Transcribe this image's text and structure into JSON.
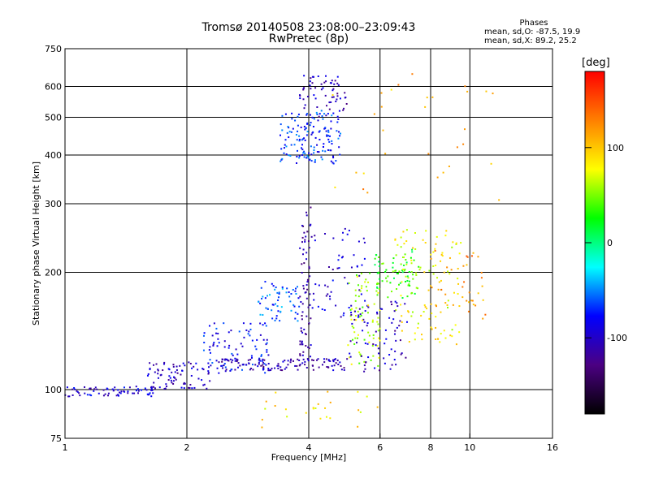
{
  "title": {
    "line1": "Tromsø 20140508 23:08:00–23:09:43",
    "line2": "RwPretec (8p)"
  },
  "phase_stats": {
    "heading": "Phases",
    "o_mode": "mean, sd,O: -87.5, 19.9",
    "x_mode": "mean, sd,X: 89.2, 25.2"
  },
  "colorbar": {
    "unit_label": "[deg]",
    "tick_values": [
      100,
      0,
      -100
    ],
    "range": [
      -180,
      180
    ],
    "colormap": [
      "#000000",
      "#4b0082",
      "#0000ff",
      "#00ffff",
      "#00ff00",
      "#ffff00",
      "#ff8000",
      "#ff0000"
    ]
  },
  "chart_data": {
    "type": "scatter",
    "xlabel": "Frequency [MHz]",
    "ylabel": "Stationary phase Virtual Height [km]",
    "x_scale": "log",
    "y_scale": "log",
    "xlim": [
      1,
      16
    ],
    "ylim": [
      75,
      750
    ],
    "x_ticks": [
      1,
      2,
      4,
      6,
      8,
      10,
      16
    ],
    "y_ticks": [
      75,
      100,
      200,
      300,
      400,
      500,
      600,
      750
    ],
    "x_grid": [
      2,
      4,
      6,
      8,
      10
    ],
    "y_grid": [
      100,
      200,
      300,
      400,
      500,
      600
    ],
    "color_by": "phase_deg",
    "clusters": [
      {
        "x_range": [
          1.0,
          1.7
        ],
        "y_range": [
          96,
          102
        ],
        "phase": -95,
        "count": 70
      },
      {
        "x_range": [
          1.6,
          2.3
        ],
        "y_range": [
          100,
          118
        ],
        "phase": -100,
        "count": 80
      },
      {
        "x_range": [
          2.2,
          3.2
        ],
        "y_range": [
          110,
          150
        ],
        "phase": -80,
        "count": 90
      },
      {
        "x_range": [
          3.0,
          3.8
        ],
        "y_range": [
          150,
          190
        ],
        "phase": -60,
        "count": 60
      },
      {
        "x_range": [
          2.4,
          5.0
        ],
        "y_range": [
          112,
          120
        ],
        "phase": -110,
        "count": 120
      },
      {
        "x_range": [
          3.4,
          4.8
        ],
        "y_range": [
          380,
          520
        ],
        "phase": -70,
        "count": 150
      },
      {
        "x_range": [
          3.8,
          5.0
        ],
        "y_range": [
          500,
          640
        ],
        "phase": -105,
        "count": 60
      },
      {
        "x_range": [
          3.8,
          4.05
        ],
        "y_range": [
          120,
          300
        ],
        "phase": -115,
        "count": 70
      },
      {
        "x_range": [
          4.0,
          5.6
        ],
        "y_range": [
          150,
          260
        ],
        "phase": -95,
        "count": 60
      },
      {
        "x_range": [
          5.0,
          6.0
        ],
        "y_range": [
          115,
          200
        ],
        "phase": 60,
        "count": 80
      },
      {
        "x_range": [
          5.8,
          7.5
        ],
        "y_range": [
          170,
          230
        ],
        "phase": 30,
        "count": 70
      },
      {
        "x_range": [
          6.5,
          9.5
        ],
        "y_range": [
          130,
          260
        ],
        "phase": 80,
        "count": 110
      },
      {
        "x_range": [
          5.0,
          7.0
        ],
        "y_range": [
          110,
          170
        ],
        "phase": -105,
        "count": 70
      },
      {
        "x_range": [
          8.0,
          11.0
        ],
        "y_range": [
          150,
          230
        ],
        "phase": 120,
        "count": 40
      },
      {
        "x_range": [
          3.0,
          6.0
        ],
        "y_range": [
          80,
          100
        ],
        "phase": 90,
        "count": 25
      },
      {
        "x_range": [
          4.5,
          12.0
        ],
        "y_range": [
          300,
          650
        ],
        "phase": 110,
        "count": 30
      }
    ]
  }
}
